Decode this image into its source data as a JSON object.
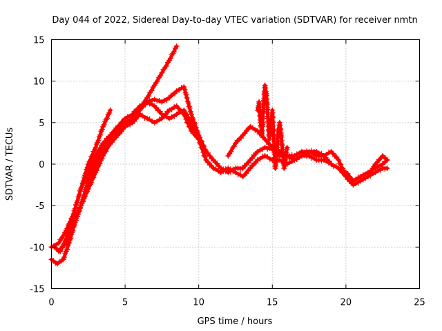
{
  "chart_data": {
    "type": "scatter",
    "title": "Day 044 of 2022, Sidereal Day-to-day VTEC variation (SDTVAR) for receiver nmtn",
    "xlabel": "GPS time / hours",
    "ylabel": "SDTVAR / TECUs",
    "xlim": [
      0,
      25
    ],
    "ylim": [
      -15,
      15
    ],
    "xticks": [
      "0",
      "5",
      "10",
      "15",
      "20",
      "25"
    ],
    "yticks": [
      "-15",
      "-10",
      "-5",
      "0",
      "5",
      "10",
      "15"
    ],
    "grid": true,
    "marker": "+",
    "color": "#ff0000",
    "series": [
      {
        "x": [
          0.0,
          0.5,
          1.0,
          1.5,
          2.0,
          2.5,
          3.0,
          3.5,
          4.0
        ],
        "y": [
          -10.0,
          -9.5,
          -8.0,
          -6.0,
          -3.0,
          0.0,
          2.0,
          4.5,
          6.5
        ]
      },
      {
        "x": [
          0.0,
          0.4,
          0.8,
          1.2,
          1.6,
          2.0,
          2.5,
          3.0,
          3.5,
          4.0,
          4.5,
          5.0,
          5.5,
          6.0,
          6.5,
          7.0,
          7.5,
          8.0,
          8.5
        ],
        "y": [
          -11.5,
          -12.0,
          -11.5,
          -9.5,
          -7.0,
          -5.0,
          -3.0,
          -1.0,
          1.0,
          2.5,
          3.5,
          4.5,
          5.5,
          6.5,
          8.0,
          9.5,
          11.0,
          12.5,
          14.2
        ]
      },
      {
        "x": [
          0.2,
          0.6,
          1.0,
          1.5,
          2.0,
          2.5,
          3.0,
          3.5,
          4.0,
          4.5,
          5.0,
          5.5,
          6.0,
          6.5,
          7.0,
          7.5,
          8.0,
          8.5,
          9.0,
          9.5,
          10.0,
          10.5,
          11.0,
          11.5,
          12.0,
          12.5,
          13.0,
          13.5,
          14.0,
          14.5,
          15.0,
          15.5,
          16.0,
          16.5,
          17.0,
          17.5,
          18.0,
          18.5,
          19.0,
          19.5,
          20.0,
          20.5,
          21.0,
          21.5,
          22.0,
          22.5,
          22.8
        ],
        "y": [
          -10.0,
          -10.5,
          -9.0,
          -6.0,
          -3.0,
          -1.0,
          1.0,
          2.5,
          3.5,
          4.5,
          5.5,
          6.0,
          7.0,
          7.5,
          7.8,
          7.5,
          8.0,
          8.8,
          9.3,
          6.0,
          3.5,
          1.5,
          0.5,
          -0.5,
          -1.0,
          -0.5,
          -0.5,
          0.5,
          1.5,
          2.0,
          1.8,
          1.0,
          1.0,
          1.0,
          1.5,
          1.5,
          1.0,
          1.0,
          1.5,
          0.5,
          -1.5,
          -2.5,
          -2.0,
          -1.5,
          0.0,
          1.0,
          0.5
        ]
      },
      {
        "x": [
          0.5,
          1.0,
          1.5,
          2.0,
          2.5,
          3.0,
          3.5,
          4.0,
          4.5,
          5.0,
          5.5,
          6.0,
          6.5,
          7.0,
          7.5,
          8.0,
          8.5,
          9.0,
          9.5,
          10.0,
          10.5,
          11.0,
          11.5,
          12.0,
          12.5,
          13.0,
          13.5,
          14.0,
          14.5,
          15.0,
          15.5,
          16.0,
          16.5,
          17.0,
          17.5,
          18.0,
          18.5,
          19.0,
          19.5,
          20.0,
          20.5,
          21.0,
          21.5,
          22.0,
          22.5,
          22.8
        ],
        "y": [
          -10.5,
          -9.5,
          -7.5,
          -5.0,
          -2.5,
          -0.5,
          1.5,
          3.0,
          4.0,
          5.0,
          5.5,
          6.5,
          7.5,
          7.0,
          6.0,
          5.5,
          6.0,
          6.5,
          5.0,
          3.0,
          0.5,
          -0.5,
          -1.0,
          -0.5,
          -1.0,
          -1.5,
          -0.5,
          0.5,
          1.0,
          0.5,
          0.5,
          0.0,
          0.5,
          1.0,
          1.0,
          0.5,
          0.5,
          0.0,
          -0.5,
          -1.5,
          -2.5,
          -2.0,
          -1.5,
          -1.0,
          -0.5,
          -0.5
        ]
      },
      {
        "x": [
          1.0,
          1.5,
          2.0,
          2.5,
          3.0,
          3.5,
          4.0,
          4.5,
          5.0,
          5.5,
          6.0,
          6.5,
          7.0,
          7.5,
          8.0,
          8.5,
          9.0,
          9.5,
          10.0
        ],
        "y": [
          -8.0,
          -7.0,
          -5.0,
          -2.0,
          0.5,
          2.0,
          3.0,
          3.5,
          4.5,
          5.0,
          6.0,
          5.5,
          5.0,
          5.5,
          6.5,
          7.0,
          6.0,
          4.0,
          3.0
        ]
      },
      {
        "x": [
          12.0,
          12.5,
          13.0,
          13.5,
          14.0,
          14.5,
          15.0,
          15.5,
          16.0,
          16.5,
          17.0,
          17.5,
          18.0,
          18.5,
          19.0,
          19.5,
          20.0,
          20.5,
          21.0,
          21.5,
          22.0,
          22.5,
          22.8
        ],
        "y": [
          1.0,
          2.5,
          3.5,
          4.5,
          4.0,
          3.0,
          2.0,
          1.5,
          1.0,
          0.5,
          1.0,
          1.5,
          1.5,
          1.0,
          0.0,
          -0.5,
          -1.0,
          -2.0,
          -1.5,
          -1.0,
          -0.5,
          0.0,
          0.5
        ]
      },
      {
        "x": [
          14.0,
          14.1,
          14.2,
          14.3,
          14.4,
          14.5,
          14.6,
          14.7,
          14.8,
          14.9,
          15.0,
          15.1,
          15.2,
          15.3,
          15.4,
          15.5,
          15.6,
          15.7,
          15.8,
          15.9,
          16.0
        ],
        "y": [
          6.5,
          7.5,
          5.0,
          3.5,
          7.0,
          9.5,
          8.5,
          5.5,
          3.0,
          4.5,
          6.5,
          3.0,
          -0.5,
          0.5,
          4.0,
          5.0,
          3.5,
          1.5,
          -0.5,
          0.5,
          2.0
        ]
      }
    ]
  }
}
